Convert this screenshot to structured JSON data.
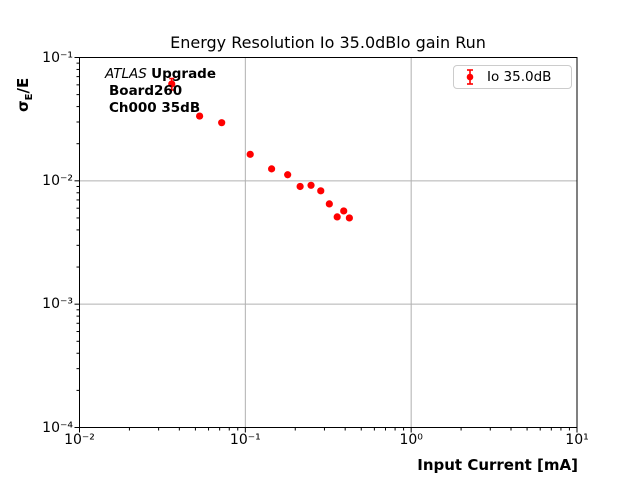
{
  "figure": {
    "title": "Energy Resolution Io 35.0dBlo gain Run",
    "xlabel": "Input Current [mA]",
    "ylabel": {
      "sigma": "σ",
      "sub": "E",
      "rest": "/E"
    },
    "annotation": {
      "experiment": "ATLAS",
      "tag": "Upgrade",
      "board": "Board260",
      "channel": "Ch000 35dB"
    },
    "legend": {
      "label": "Io 35.0dB",
      "marker": "errorbar-dot-icon",
      "color": "#ff0000"
    }
  },
  "chart_data": {
    "type": "scatter",
    "title": "Energy Resolution Io 35.0dBlo gain Run",
    "xlabel": "Input Current [mA]",
    "ylabel": "sigma_E/E",
    "x_scale": "log",
    "y_scale": "log",
    "xlim": [
      0.01,
      10
    ],
    "ylim": [
      0.0001,
      0.1
    ],
    "x_ticks": [
      0.01,
      0.1,
      1,
      10
    ],
    "x_tick_labels": [
      "10⁻²",
      "10⁻¹",
      "10⁰",
      "10¹"
    ],
    "y_ticks": [
      0.1,
      0.01,
      0.001,
      0.0001
    ],
    "y_tick_labels": [
      "10⁻¹",
      "10⁻²",
      "10⁻³",
      "10⁻⁴"
    ],
    "grid": "major",
    "grid_color": "#b0b0b0",
    "legend_position": "upper right",
    "series": [
      {
        "name": "Io 35.0dB",
        "color": "#ff0000",
        "marker": "o",
        "x": [
          0.036,
          0.053,
          0.072,
          0.107,
          0.144,
          0.18,
          0.214,
          0.249,
          0.285,
          0.321,
          0.358,
          0.392,
          0.424
        ],
        "y": [
          0.061,
          0.0335,
          0.0296,
          0.0164,
          0.0125,
          0.0112,
          0.009,
          0.0092,
          0.0083,
          0.0065,
          0.0051,
          0.0057,
          0.005
        ],
        "yerr": [
          0.0065,
          0,
          0,
          0,
          0,
          0,
          0,
          0,
          0,
          0,
          0,
          0,
          0
        ]
      }
    ]
  }
}
